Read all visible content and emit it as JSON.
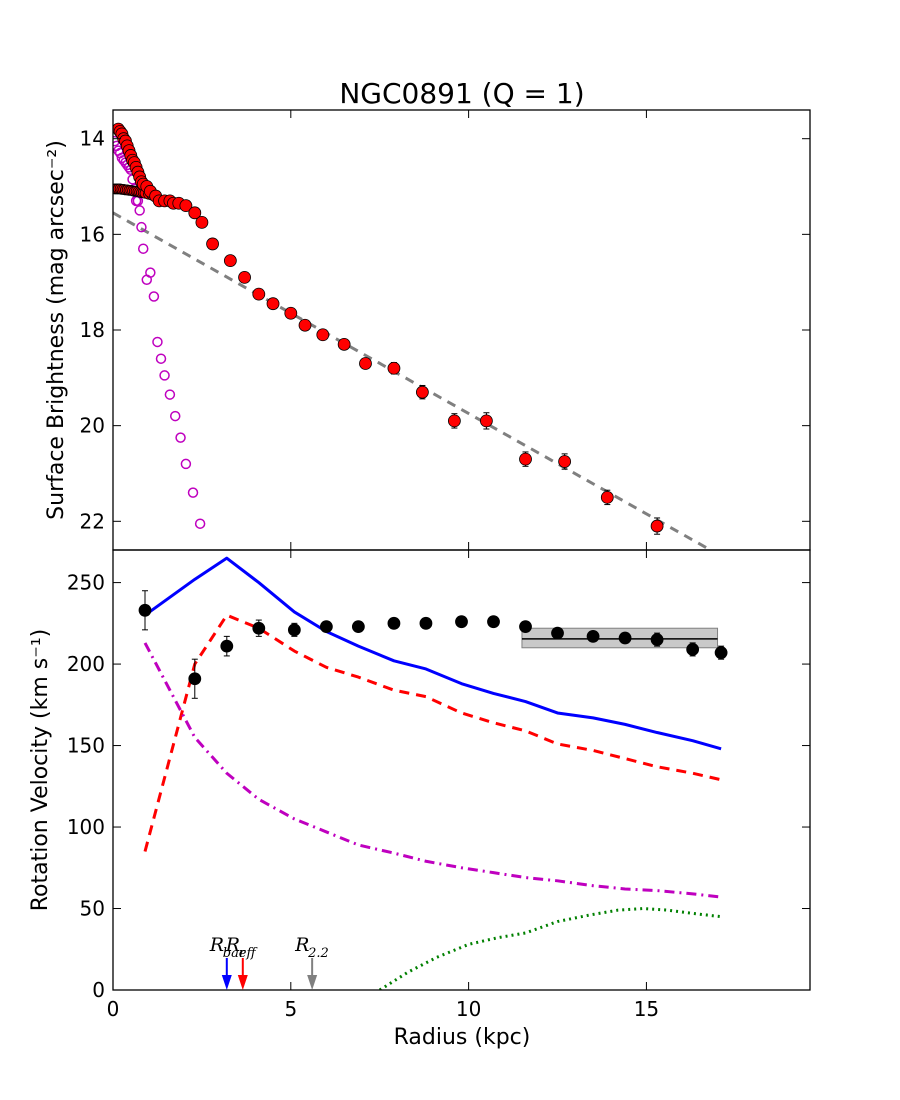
{
  "chart_data": [
    {
      "type": "scatter",
      "title": "NGC0891 (Q = 1)",
      "ylabel": "Surface Brightness (mag arcsec⁻²)",
      "xlim": [
        0,
        19.6
      ],
      "ylim": [
        22.6,
        13.4
      ],
      "y_inverted": true,
      "yticks": [
        14,
        16,
        18,
        20,
        22
      ],
      "series": [
        {
          "marker": "filled-circle",
          "color": "#ff0000",
          "x": [
            0.15,
            0.2,
            0.25,
            0.3,
            0.35,
            0.4,
            0.45,
            0.5,
            0.55,
            0.6,
            0.65,
            0.7,
            0.75,
            0.8,
            0.85,
            0.95,
            1.05,
            1.2,
            1.3,
            1.45,
            1.6,
            1.7,
            1.85,
            2.05,
            2.3,
            2.5,
            2.8,
            3.3,
            3.7,
            4.1,
            4.5,
            5.0,
            5.4,
            5.9,
            6.5,
            7.1,
            7.9,
            8.7,
            9.6,
            10.5,
            11.6,
            12.7,
            13.9,
            15.3
          ],
          "y": [
            13.8,
            13.85,
            13.9,
            14.0,
            14.05,
            14.15,
            14.25,
            14.35,
            14.45,
            14.5,
            14.6,
            14.7,
            14.8,
            14.9,
            14.95,
            15.0,
            15.1,
            15.2,
            15.3,
            15.3,
            15.3,
            15.35,
            15.35,
            15.4,
            15.55,
            15.75,
            16.2,
            16.55,
            16.9,
            17.25,
            17.45,
            17.65,
            17.9,
            18.1,
            18.3,
            18.7,
            18.8,
            19.3,
            19.9,
            19.9,
            20.7,
            20.75,
            21.5,
            22.1
          ],
          "yerr": [
            0.03,
            0.03,
            0.03,
            0.03,
            0.03,
            0.03,
            0.03,
            0.03,
            0.03,
            0.03,
            0.03,
            0.03,
            0.03,
            0.03,
            0.03,
            0.03,
            0.03,
            0.03,
            0.03,
            0.03,
            0.03,
            0.03,
            0.03,
            0.03,
            0.03,
            0.03,
            0.04,
            0.05,
            0.05,
            0.05,
            0.05,
            0.06,
            0.07,
            0.08,
            0.1,
            0.1,
            0.12,
            0.14,
            0.15,
            0.17,
            0.15,
            0.16,
            0.15,
            0.17
          ]
        },
        {
          "marker": "filled-circle",
          "color": "#ff0000",
          "x": [
            0.05,
            0.1,
            0.15,
            0.2,
            0.25,
            0.3,
            0.35,
            0.4,
            0.45,
            0.5,
            0.55,
            0.6,
            0.65,
            0.7,
            0.75,
            0.8,
            0.85,
            0.9,
            1.0,
            1.1
          ],
          "y": [
            15.05,
            15.05,
            15.05,
            15.05,
            15.06,
            15.06,
            15.07,
            15.07,
            15.08,
            15.08,
            15.09,
            15.1,
            15.1,
            15.11,
            15.12,
            15.13,
            15.13,
            15.14,
            15.16,
            15.18
          ]
        },
        {
          "marker": "open-circle",
          "color": "#bf00bf",
          "x": [
            0.05,
            0.1,
            0.15,
            0.2,
            0.25,
            0.3,
            0.35,
            0.4,
            0.45,
            0.5,
            0.55,
            0.6,
            0.65,
            0.7,
            0.75,
            0.8,
            0.85,
            0.95,
            1.05,
            1.15,
            1.25,
            1.35,
            1.45,
            1.6,
            1.75,
            1.9,
            2.05,
            2.25,
            2.45
          ],
          "y": [
            14.05,
            14.15,
            14.25,
            14.3,
            14.4,
            14.45,
            14.5,
            14.55,
            14.6,
            14.65,
            14.85,
            15.05,
            15.3,
            15.3,
            15.5,
            15.85,
            16.3,
            16.95,
            16.8,
            17.3,
            18.25,
            18.6,
            18.95,
            19.35,
            19.8,
            20.25,
            20.8,
            21.4,
            22.05
          ]
        },
        {
          "marker": "dashed-line",
          "color": "#808080",
          "x": [
            0,
            16.8
          ],
          "y": [
            15.55,
            22.6
          ]
        }
      ]
    },
    {
      "type": "line",
      "xlabel": "Radius (kpc)",
      "ylabel": "Rotation Velocity (km s⁻¹)",
      "xlim": [
        0,
        19.6
      ],
      "ylim": [
        0,
        270
      ],
      "xticks": [
        0,
        5,
        10,
        15
      ],
      "yticks": [
        0,
        50,
        100,
        150,
        200,
        250
      ],
      "band": {
        "x": [
          11.5,
          17.0
        ],
        "y": [
          210,
          222
        ],
        "center": 215.5,
        "color": "#bfbfbf"
      },
      "series": [
        {
          "style": "points",
          "color": "#000000",
          "x": [
            0.9,
            2.3,
            3.2,
            4.1,
            5.1,
            6.0,
            6.9,
            7.9,
            8.8,
            9.8,
            10.7,
            11.6,
            12.5,
            13.5,
            14.4,
            15.3,
            16.3,
            17.1
          ],
          "y": [
            233,
            191,
            211,
            222,
            221,
            223,
            223,
            225,
            225,
            226,
            226,
            223,
            219,
            217,
            216,
            215,
            209,
            207
          ],
          "yerr": [
            12,
            12,
            6,
            5,
            4,
            3,
            3,
            3,
            3,
            3,
            3,
            3,
            3,
            3,
            3,
            4,
            4,
            4
          ]
        },
        {
          "style": "solid",
          "color": "#0000ff",
          "x": [
            0.9,
            2.3,
            3.2,
            4.1,
            5.1,
            6.0,
            6.9,
            7.9,
            8.8,
            9.8,
            10.7,
            11.6,
            12.5,
            13.5,
            14.4,
            15.3,
            16.3,
            17.1
          ],
          "y": [
            230,
            252,
            265,
            250,
            232,
            220,
            211,
            202,
            197,
            188,
            182,
            177,
            170,
            167,
            163,
            158,
            153,
            148
          ]
        },
        {
          "style": "dashed",
          "color": "#ff0000",
          "x": [
            0.9,
            2.3,
            3.2,
            4.1,
            5.1,
            6.0,
            6.9,
            7.9,
            8.8,
            9.8,
            10.7,
            11.6,
            12.5,
            13.5,
            14.4,
            15.3,
            16.3,
            17.1
          ],
          "y": [
            85,
            200,
            230,
            222,
            208,
            198,
            192,
            184,
            180,
            170,
            164,
            159,
            151,
            147,
            142,
            137,
            133,
            129
          ]
        },
        {
          "style": "dash-dot",
          "color": "#bf00bf",
          "x": [
            0.9,
            2.3,
            3.2,
            4.1,
            5.1,
            6.0,
            6.9,
            7.9,
            8.8,
            9.8,
            10.7,
            11.6,
            12.5,
            13.5,
            14.4,
            15.3,
            16.3,
            17.1
          ],
          "y": [
            213,
            155,
            133,
            117,
            105,
            97,
            89,
            84,
            79,
            75,
            72,
            69,
            67,
            64,
            62,
            61,
            59,
            57
          ]
        },
        {
          "style": "dotted",
          "color": "#008000",
          "x": [
            7.5,
            8.3,
            9.1,
            10.0,
            10.8,
            11.6,
            12.5,
            13.4,
            14.2,
            14.9,
            15.6,
            16.3,
            17.1
          ],
          "y": [
            0,
            11,
            20,
            28,
            32,
            35,
            42,
            46,
            49,
            50,
            49,
            47,
            45
          ]
        }
      ],
      "markers": [
        {
          "label": "R",
          "sub": "bar",
          "x": 3.2,
          "color": "#0000ff"
        },
        {
          "label": "R",
          "sub": "eff",
          "x": 3.65,
          "color": "#ff0000"
        },
        {
          "label": "R",
          "sub": "2.2",
          "x": 5.6,
          "color": "#808080"
        }
      ]
    }
  ]
}
